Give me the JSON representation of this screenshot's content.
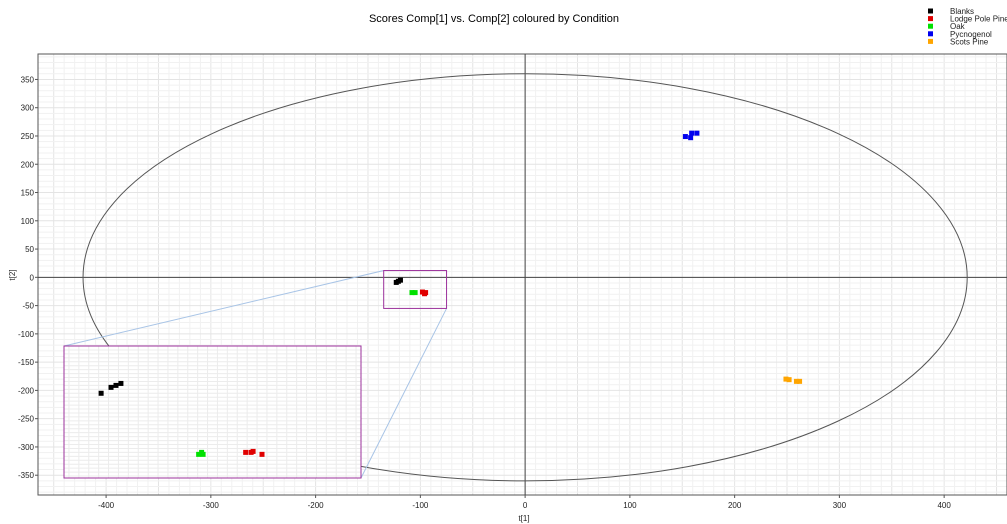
{
  "chart_data": {
    "type": "scatter",
    "title": "Scores Comp[1] vs. Comp[2] coloured by Condition",
    "xlabel": "t[1]",
    "ylabel": "t[2]",
    "xlim": [
      -465,
      460
    ],
    "ylim": [
      -385,
      395
    ],
    "x_ticks": [
      -400,
      -300,
      -200,
      -100,
      0,
      100,
      200,
      300,
      400
    ],
    "y_ticks": [
      350,
      300,
      250,
      200,
      150,
      100,
      50,
      0,
      -50,
      -100,
      -150,
      -200,
      -250,
      -300,
      -350
    ],
    "grid": true,
    "legend_position": "top-right",
    "ellipse": {
      "cx": 0,
      "cy": 0,
      "rx": 422,
      "ry": 360
    },
    "series": [
      {
        "name": "Blanks",
        "color": "#000000",
        "points": [
          [
            -123,
            -9
          ],
          [
            -121,
            -7
          ],
          [
            -119,
            -5
          ]
        ]
      },
      {
        "name": "Lodge Pole Pine",
        "color": "#e00000",
        "points": [
          [
            -98,
            -26
          ],
          [
            -95,
            -27
          ],
          [
            -96,
            -29
          ]
        ]
      },
      {
        "name": "Oak",
        "color": "#00e000",
        "points": [
          [
            -108,
            -27
          ],
          [
            -105,
            -27
          ]
        ]
      },
      {
        "name": "Pycnogenol",
        "color": "#0000ee",
        "points": [
          [
            153,
            249
          ],
          [
            159,
            255
          ],
          [
            164,
            255
          ],
          [
            158,
            247
          ]
        ]
      },
      {
        "name": "Scots Pine",
        "color": "#ffa500",
        "points": [
          [
            249,
            -180
          ],
          [
            252,
            -181
          ],
          [
            259,
            -184
          ],
          [
            262,
            -184
          ]
        ]
      }
    ],
    "zoom_inset": {
      "source_x": [
        -135,
        -75
      ],
      "source_y": [
        -55,
        12
      ],
      "series": [
        {
          "name": "Blanks",
          "color": "#000000",
          "points": [
            [
              -127.5,
              -12
            ],
            [
              -125.5,
              -9
            ],
            [
              -124.5,
              -8
            ],
            [
              -123.5,
              -7
            ]
          ]
        },
        {
          "name": "Oak",
          "color": "#00e000",
          "points": [
            [
              -107.8,
              -43
            ],
            [
              -107.2,
              -42
            ],
            [
              -106.9,
              -43
            ]
          ]
        },
        {
          "name": "Lodge Pole Pine",
          "color": "#e00000",
          "points": [
            [
              -98.3,
              -42
            ],
            [
              -97.2,
              -42
            ],
            [
              -96.8,
              -41.5
            ],
            [
              -95,
              -43
            ]
          ]
        }
      ]
    }
  }
}
